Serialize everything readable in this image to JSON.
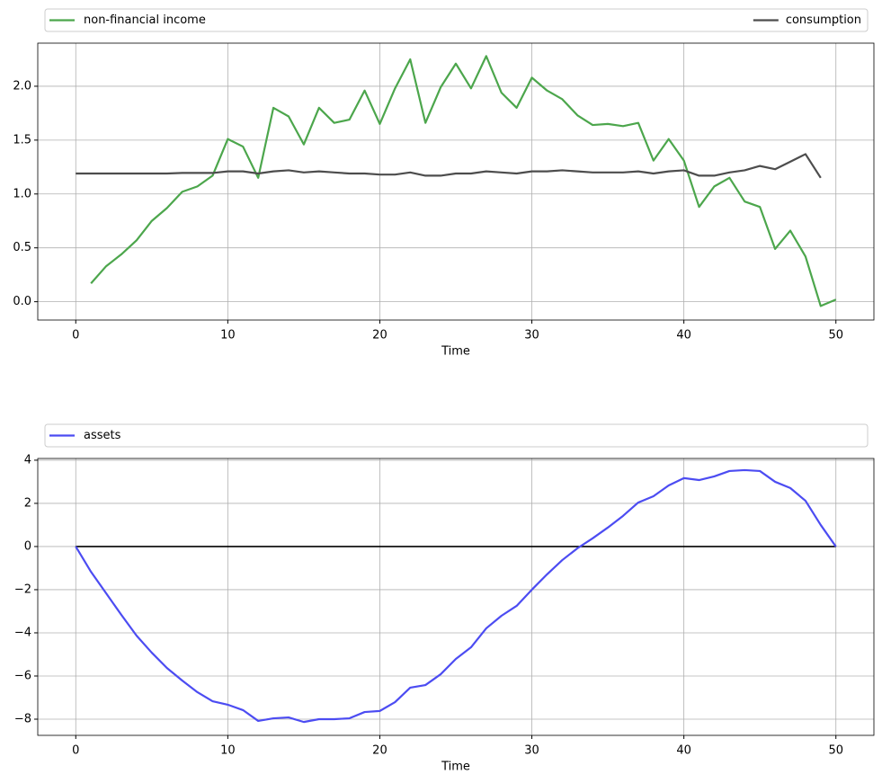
{
  "chart_data": [
    {
      "type": "line",
      "xlabel": "Time",
      "grid": true,
      "legend": "above",
      "x": [
        0,
        1,
        2,
        3,
        4,
        5,
        6,
        7,
        8,
        9,
        10,
        11,
        12,
        13,
        14,
        15,
        16,
        17,
        18,
        19,
        20,
        21,
        22,
        23,
        24,
        25,
        26,
        27,
        28,
        29,
        30,
        31,
        32,
        33,
        34,
        35,
        36,
        37,
        38,
        39,
        40,
        41,
        42,
        43,
        44,
        45,
        46,
        47,
        48,
        49,
        50
      ],
      "xlim": [
        -2.5,
        52.5
      ],
      "xticks": [
        0,
        10,
        20,
        30,
        40,
        50
      ],
      "ylim": [
        -0.17,
        2.4
      ],
      "yticks": [
        {
          "value": 0,
          "label": "0.0"
        },
        0.5,
        {
          "value": 1,
          "label": "1.0"
        },
        1.5,
        {
          "value": 2,
          "label": "2.0"
        }
      ],
      "series": [
        {
          "name": "non-financial income",
          "color": "#4ca64c",
          "values": [
            null,
            0.17,
            0.33,
            0.44,
            0.57,
            0.75,
            0.87,
            1.02,
            1.07,
            1.17,
            1.51,
            1.44,
            1.15,
            1.8,
            1.72,
            1.46,
            1.8,
            1.66,
            1.69,
            1.96,
            1.65,
            1.98,
            2.25,
            1.66,
            1.99,
            2.21,
            1.98,
            2.28,
            1.94,
            1.8,
            2.08,
            1.96,
            1.88,
            1.73,
            1.64,
            1.65,
            1.63,
            1.66,
            1.31,
            1.51,
            1.31,
            0.88,
            1.07,
            1.15,
            0.93,
            0.88,
            0.49,
            0.66,
            0.42,
            -0.04,
            0.02
          ]
        },
        {
          "name": "consumption",
          "color": "#4d4d4d",
          "values": [
            1.19,
            1.19,
            1.19,
            1.19,
            1.19,
            1.19,
            1.19,
            1.195,
            1.195,
            1.195,
            1.21,
            1.21,
            1.19,
            1.21,
            1.22,
            1.2,
            1.21,
            1.2,
            1.19,
            1.19,
            1.18,
            1.18,
            1.2,
            1.17,
            1.17,
            1.19,
            1.19,
            1.21,
            1.2,
            1.19,
            1.21,
            1.21,
            1.22,
            1.21,
            1.2,
            1.2,
            1.2,
            1.21,
            1.19,
            1.21,
            1.22,
            1.17,
            1.17,
            1.2,
            1.22,
            1.26,
            1.23,
            1.3,
            1.37,
            1.15,
            null
          ]
        }
      ]
    },
    {
      "type": "line",
      "xlabel": "Time",
      "grid": true,
      "legend": "above",
      "hline": 0,
      "x": [
        0,
        1,
        2,
        3,
        4,
        5,
        6,
        7,
        8,
        9,
        10,
        11,
        12,
        13,
        14,
        15,
        16,
        17,
        18,
        19,
        20,
        21,
        22,
        23,
        24,
        25,
        26,
        27,
        28,
        29,
        30,
        31,
        32,
        33,
        34,
        35,
        36,
        37,
        38,
        39,
        40,
        41,
        42,
        43,
        44,
        45,
        46,
        47,
        48,
        49,
        50
      ],
      "xlim": [
        -2.5,
        52.5
      ],
      "xticks": [
        0,
        10,
        20,
        30,
        40,
        50
      ],
      "ylim": [
        -8.75,
        4.08
      ],
      "yticks": [
        {
          "value": -8,
          "label": "−8"
        },
        {
          "value": -6,
          "label": "−6"
        },
        {
          "value": -4,
          "label": "−4"
        },
        {
          "value": -2,
          "label": "−2"
        },
        0,
        2,
        4
      ],
      "series": [
        {
          "name": "assets",
          "color": "#4c4cf2",
          "values": [
            0,
            -1.17,
            -2.17,
            -3.17,
            -4.13,
            -4.92,
            -5.63,
            -6.21,
            -6.75,
            -7.17,
            -7.33,
            -7.58,
            -8.08,
            -7.96,
            -7.92,
            -8.13,
            -8,
            -8,
            -7.96,
            -7.67,
            -7.62,
            -7.21,
            -6.54,
            -6.42,
            -5.92,
            -5.21,
            -4.67,
            -3.79,
            -3.21,
            -2.75,
            -2,
            -1.29,
            -0.63,
            -0.08,
            0.38,
            0.88,
            1.42,
            2.04,
            2.33,
            2.83,
            3.17,
            3.08,
            3.25,
            3.5,
            3.54,
            3.5,
            3,
            2.71,
            2.12,
            1,
            0
          ]
        }
      ]
    }
  ]
}
